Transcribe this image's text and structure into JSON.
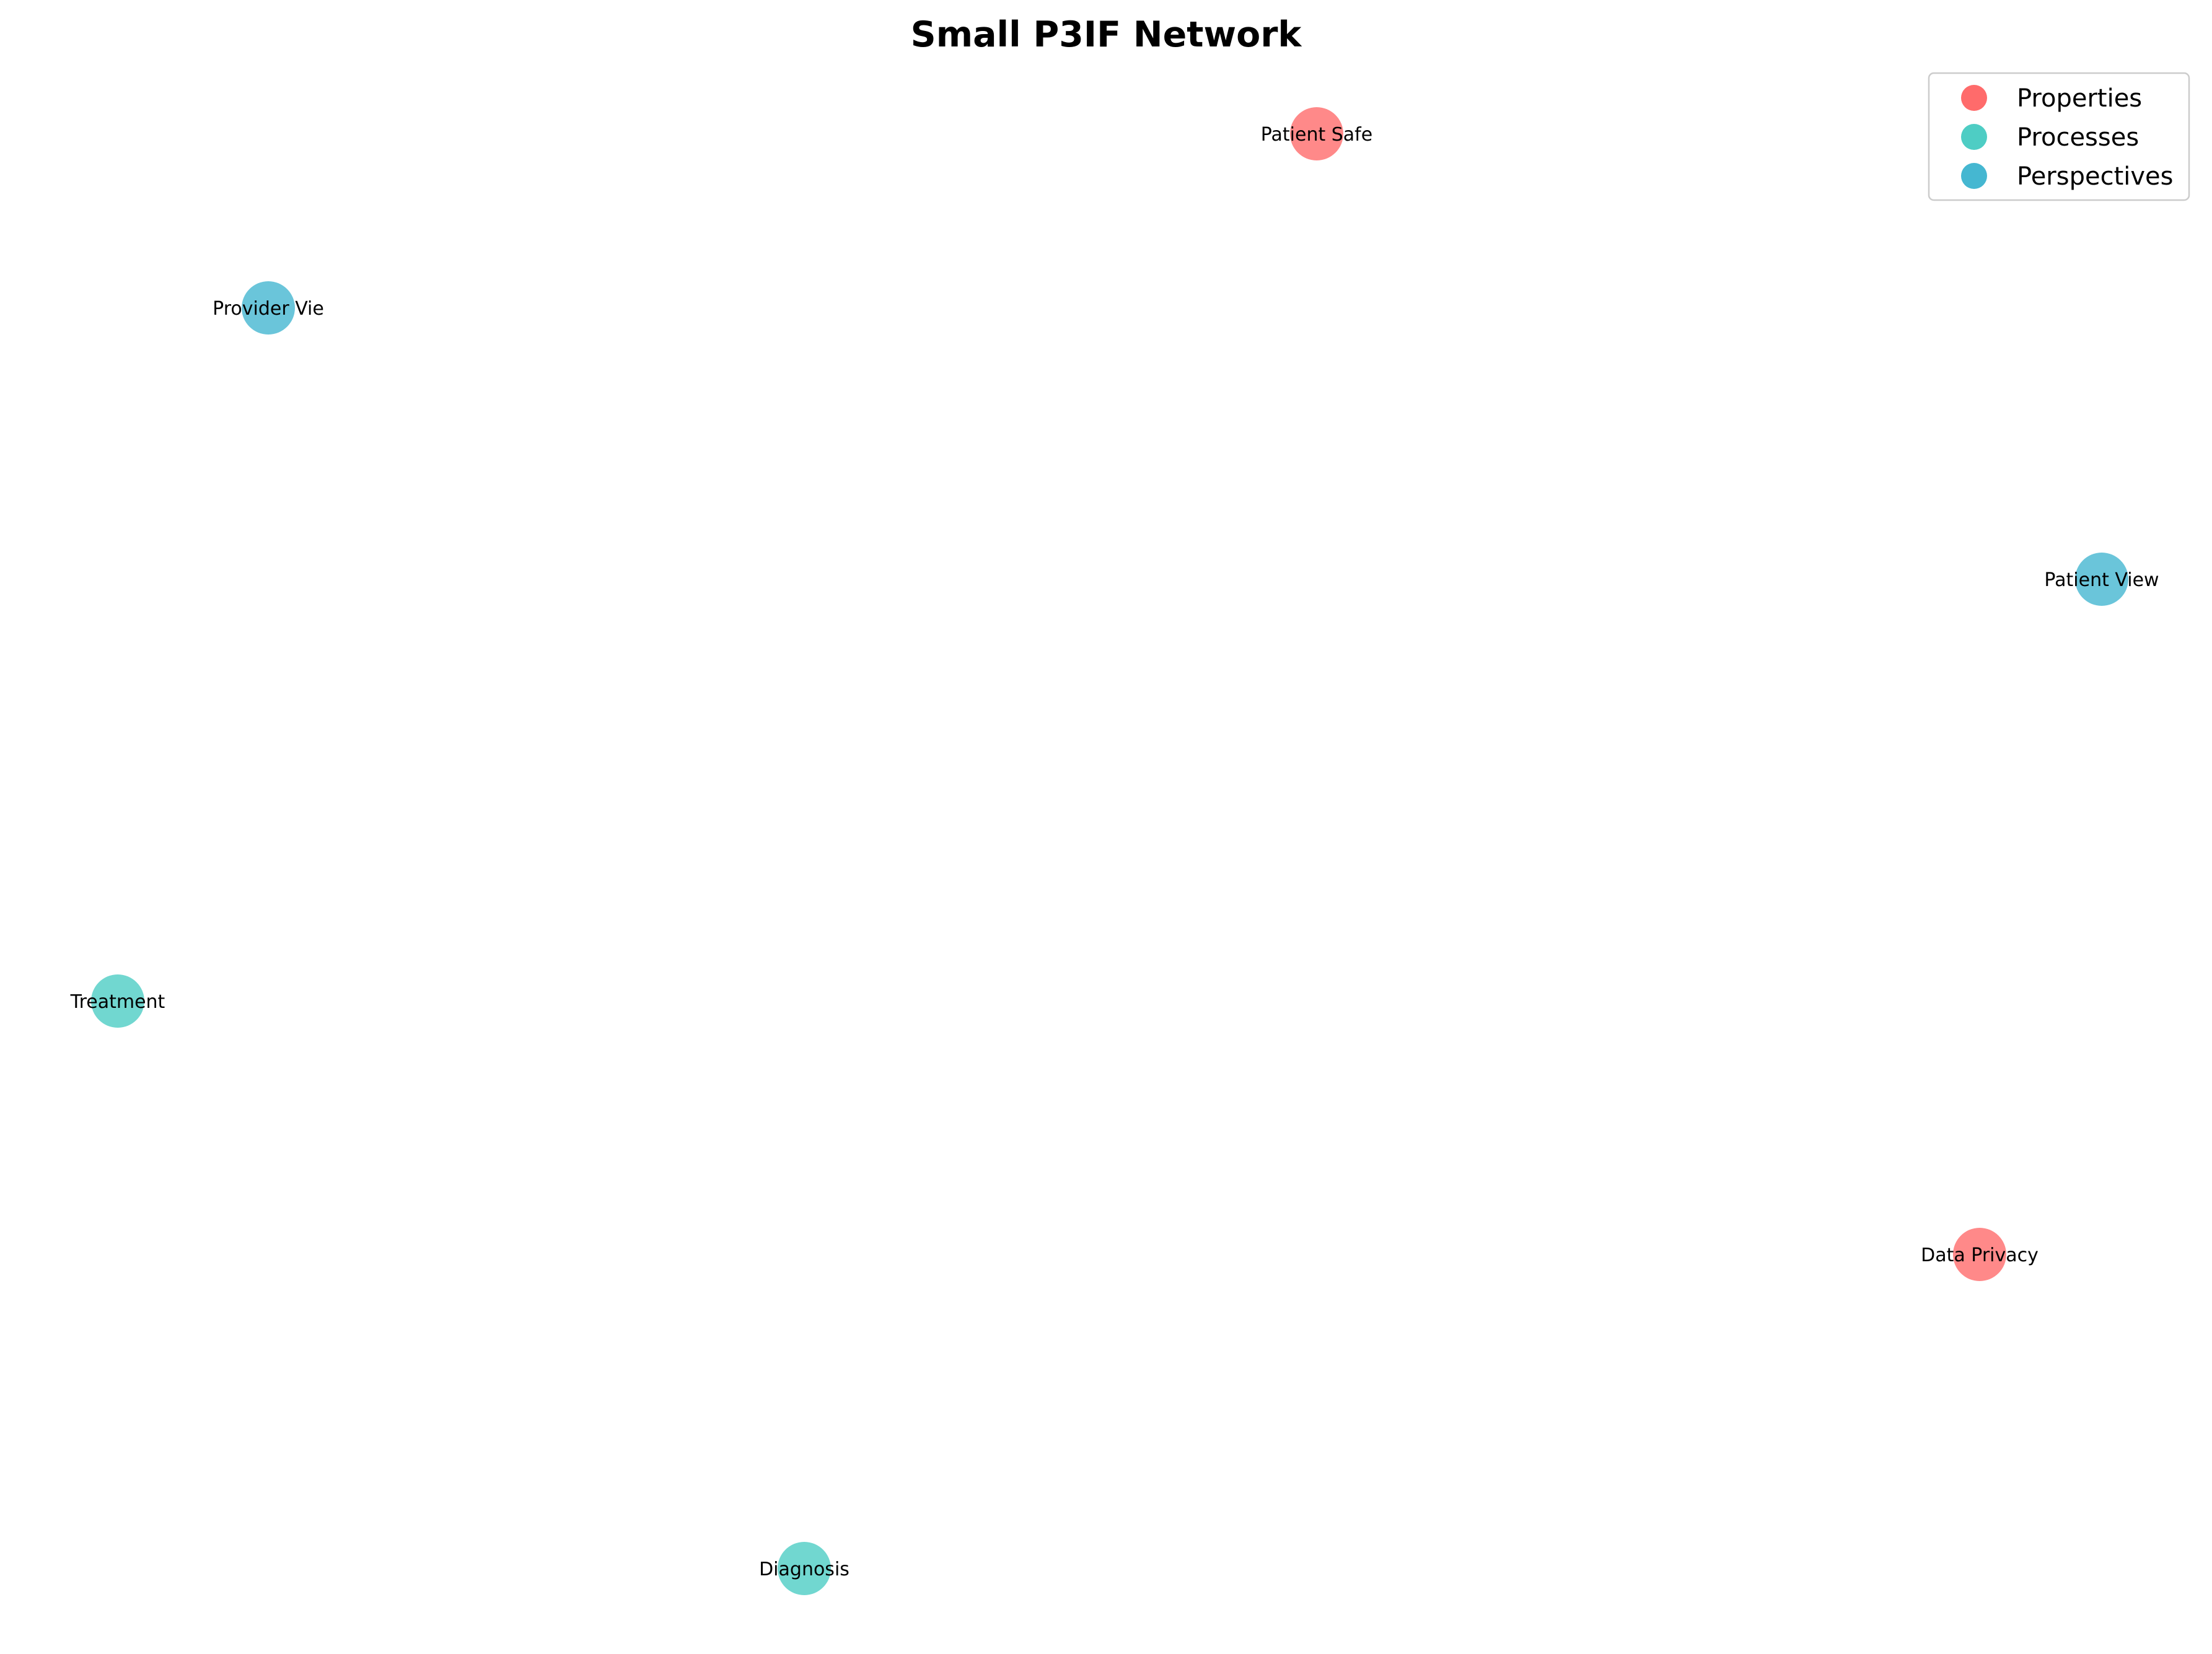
{
  "title": "Small P3IF Network",
  "colors": {
    "Properties": "#ff6b6b",
    "Processes": "#4ecdc4",
    "Perspectives": "#45b7d1"
  },
  "legend": {
    "placement": "top-right",
    "items": [
      {
        "label": "Properties",
        "color": "#ff6b6b"
      },
      {
        "label": "Processes",
        "color": "#4ecdc4"
      },
      {
        "label": "Perspectives",
        "color": "#45b7d1"
      }
    ]
  },
  "nodes": [
    {
      "id": "patient-safe",
      "label": "Patient Safe",
      "group": "Properties"
    },
    {
      "id": "provider-vie",
      "label": "Provider Vie",
      "group": "Perspectives"
    },
    {
      "id": "patient-view",
      "label": "Patient View",
      "group": "Perspectives"
    },
    {
      "id": "treatment",
      "label": "Treatment",
      "group": "Processes"
    },
    {
      "id": "data-privacy",
      "label": "Data Privacy",
      "group": "Properties"
    },
    {
      "id": "diagnosis",
      "label": "Diagnosis",
      "group": "Processes"
    }
  ]
}
